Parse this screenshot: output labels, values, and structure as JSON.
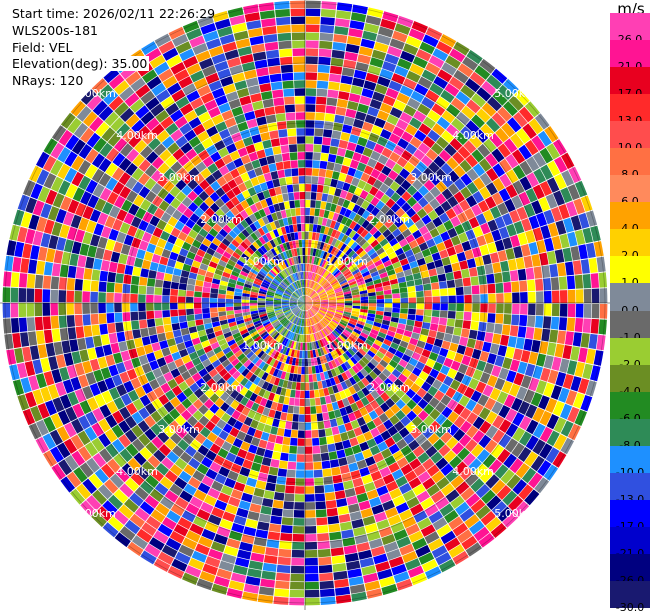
{
  "header": {
    "start_time": "Start time: 2026/02/11 22:26:29",
    "instrument": "WLS200s-181",
    "field": "Field: VEL",
    "elevation": "Elevation(deg): 35.00",
    "nrays": "NRays: 120"
  },
  "colorbar": {
    "unit": "m/s",
    "bands": [
      {
        "label": "26.0",
        "color": "#ff3fb4"
      },
      {
        "label": "21.0",
        "color": "#ff1493"
      },
      {
        "label": "17.0",
        "color": "#e8001f"
      },
      {
        "label": "13.0",
        "color": "#ff2a2a"
      },
      {
        "label": "10.0",
        "color": "#ff4d4d"
      },
      {
        "label": "8.0",
        "color": "#ff7043"
      },
      {
        "label": "6.0",
        "color": "#ff8a5c"
      },
      {
        "label": "4.0",
        "color": "#ffa200"
      },
      {
        "label": "2.0",
        "color": "#ffd000"
      },
      {
        "label": "1.0",
        "color": "#ffff00"
      },
      {
        "label": "0.0",
        "color": "#7f8a99"
      },
      {
        "label": "-1.0",
        "color": "#6a6a6a"
      },
      {
        "label": "-2.0",
        "color": "#9acd32"
      },
      {
        "label": "-4.0",
        "color": "#6b8e23"
      },
      {
        "label": "-6.0",
        "color": "#228b22"
      },
      {
        "label": "-8.0",
        "color": "#2e8b57"
      },
      {
        "label": "-10.0",
        "color": "#1e90ff"
      },
      {
        "label": "-13.0",
        "color": "#3050e0"
      },
      {
        "label": "-17.0",
        "color": "#0000ff"
      },
      {
        "label": "-21.0",
        "color": "#0000cd"
      },
      {
        "label": "-26.0",
        "color": "#000080"
      },
      {
        "label": "-30.0",
        "color": "#191970"
      }
    ]
  },
  "range_rings": {
    "r1": "1.00km",
    "r2": "2.00km",
    "r3": "3.00km",
    "r4": "4.00km",
    "r5": "5.00km"
  },
  "palette": [
    "#ff1493",
    "#ff3fb4",
    "#e8001f",
    "#ff2a2a",
    "#ff4d4d",
    "#ff7043",
    "#ffa200",
    "#ffd000",
    "#ffff00",
    "#7f8a99",
    "#6a6a6a",
    "#9acd32",
    "#6b8e23",
    "#228b22",
    "#2e8b57",
    "#1e90ff",
    "#3050e0",
    "#0000ff",
    "#0000cd",
    "#000080",
    "#191970"
  ]
}
